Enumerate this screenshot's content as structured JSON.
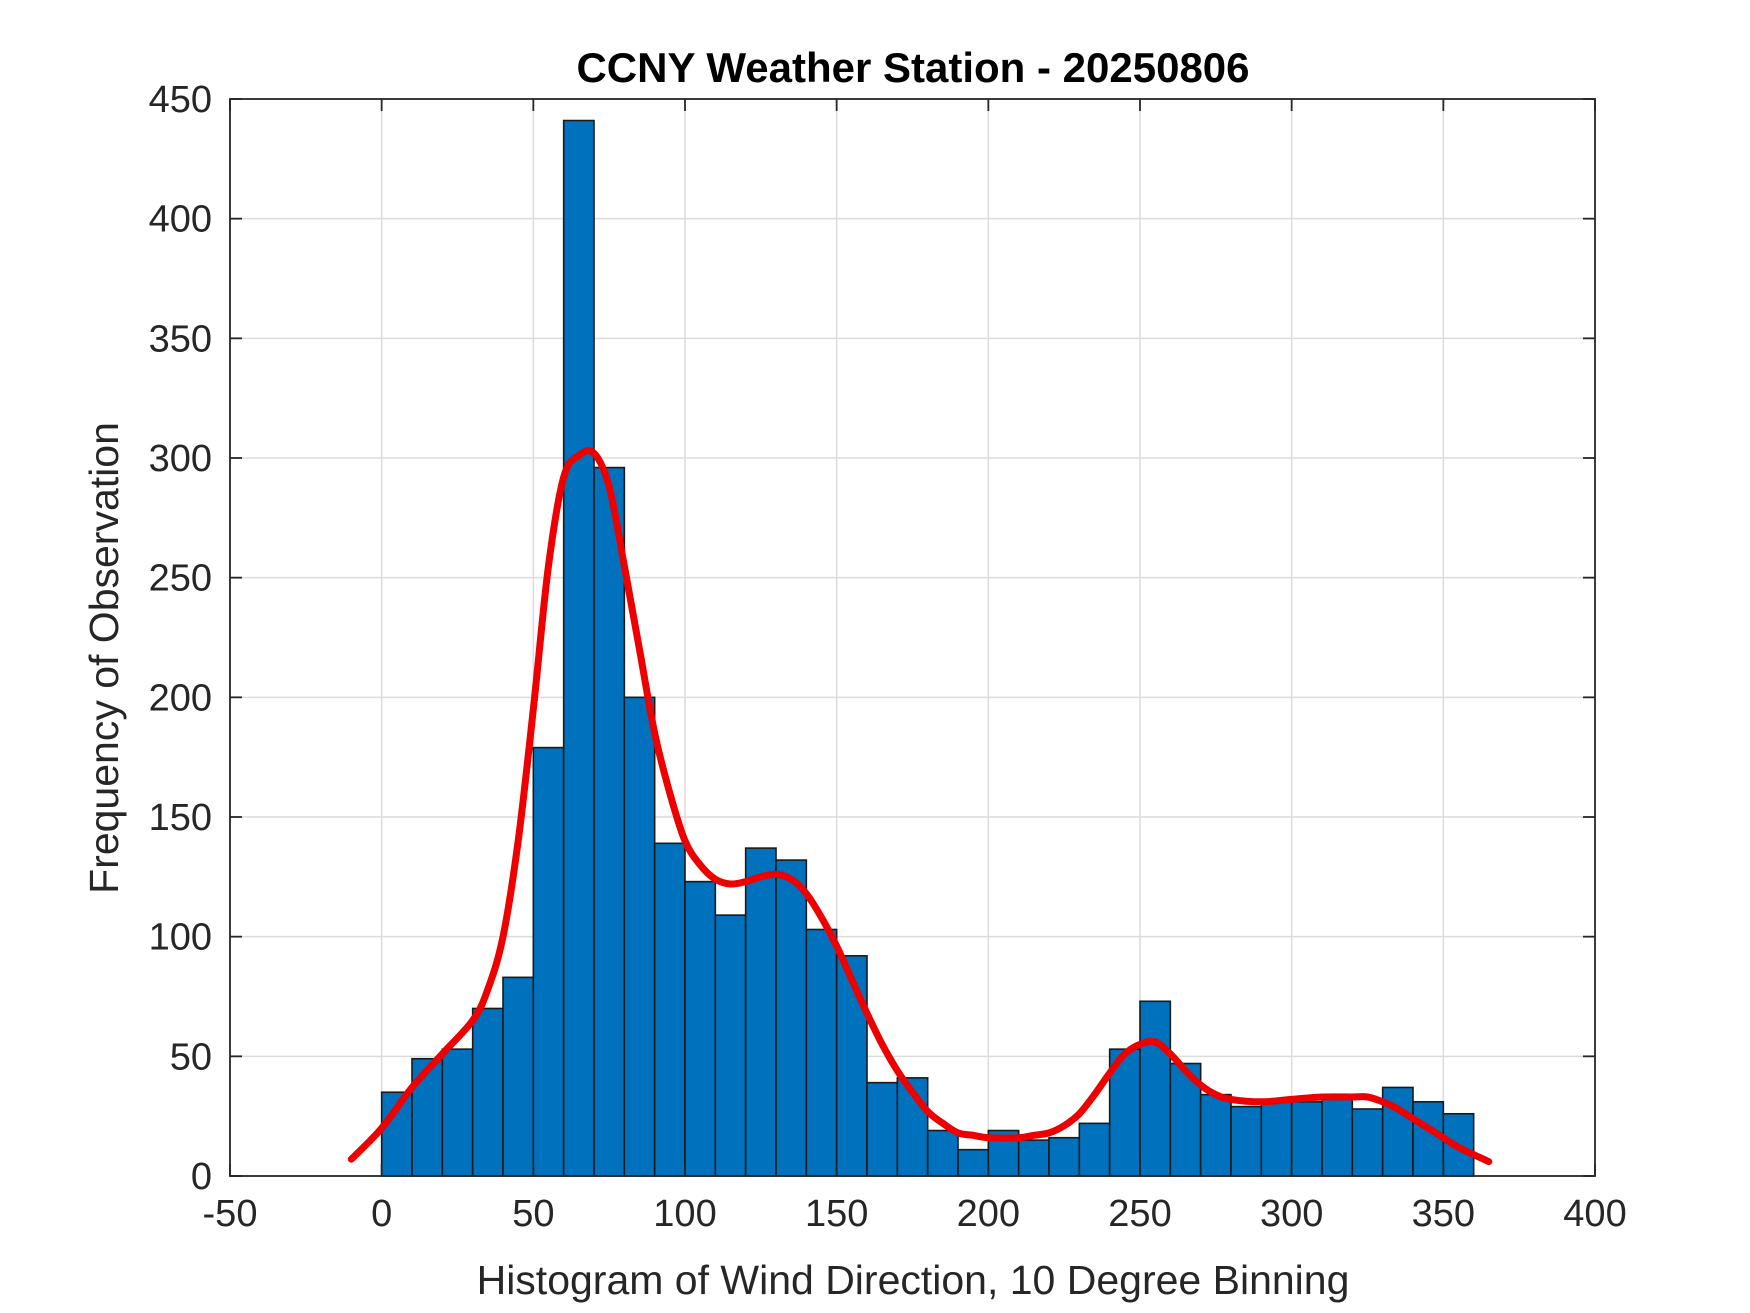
{
  "chart_data": {
    "type": "bar",
    "title": "CCNY Weather Station - 20250806",
    "xlabel": "Histogram of Wind Direction, 10 Degree Binning",
    "ylabel": "Frequency of Observation",
    "xlim": [
      -50,
      400
    ],
    "ylim": [
      0,
      450
    ],
    "xticks": [
      -50,
      0,
      50,
      100,
      150,
      200,
      250,
      300,
      350,
      400
    ],
    "yticks": [
      0,
      50,
      100,
      150,
      200,
      250,
      300,
      350,
      400,
      450
    ],
    "grid": true,
    "bin_width": 10,
    "bins": [
      {
        "start": 0,
        "value": 35
      },
      {
        "start": 10,
        "value": 49
      },
      {
        "start": 20,
        "value": 53
      },
      {
        "start": 30,
        "value": 70
      },
      {
        "start": 40,
        "value": 83
      },
      {
        "start": 50,
        "value": 179
      },
      {
        "start": 60,
        "value": 441
      },
      {
        "start": 70,
        "value": 296
      },
      {
        "start": 80,
        "value": 200
      },
      {
        "start": 90,
        "value": 139
      },
      {
        "start": 100,
        "value": 123
      },
      {
        "start": 110,
        "value": 109
      },
      {
        "start": 120,
        "value": 137
      },
      {
        "start": 130,
        "value": 132
      },
      {
        "start": 140,
        "value": 103
      },
      {
        "start": 150,
        "value": 92
      },
      {
        "start": 160,
        "value": 39
      },
      {
        "start": 170,
        "value": 41
      },
      {
        "start": 180,
        "value": 19
      },
      {
        "start": 190,
        "value": 11
      },
      {
        "start": 200,
        "value": 19
      },
      {
        "start": 210,
        "value": 15
      },
      {
        "start": 220,
        "value": 16
      },
      {
        "start": 230,
        "value": 22
      },
      {
        "start": 240,
        "value": 53
      },
      {
        "start": 250,
        "value": 73
      },
      {
        "start": 260,
        "value": 47
      },
      {
        "start": 270,
        "value": 34
      },
      {
        "start": 280,
        "value": 29
      },
      {
        "start": 290,
        "value": 31
      },
      {
        "start": 300,
        "value": 31
      },
      {
        "start": 310,
        "value": 32
      },
      {
        "start": 320,
        "value": 28
      },
      {
        "start": 330,
        "value": 37
      },
      {
        "start": 340,
        "value": 31
      },
      {
        "start": 350,
        "value": 26
      }
    ],
    "fit_curve": {
      "name": "density fit",
      "points": [
        [
          -10,
          7
        ],
        [
          0,
          20
        ],
        [
          10,
          37
        ],
        [
          20,
          51
        ],
        [
          30,
          65
        ],
        [
          35,
          78
        ],
        [
          40,
          100
        ],
        [
          45,
          140
        ],
        [
          50,
          195
        ],
        [
          55,
          255
        ],
        [
          60,
          292
        ],
        [
          65,
          301
        ],
        [
          70,
          302
        ],
        [
          75,
          288
        ],
        [
          80,
          255
        ],
        [
          85,
          220
        ],
        [
          90,
          185
        ],
        [
          95,
          160
        ],
        [
          100,
          140
        ],
        [
          105,
          130
        ],
        [
          110,
          124
        ],
        [
          115,
          122
        ],
        [
          120,
          123
        ],
        [
          125,
          125
        ],
        [
          130,
          126
        ],
        [
          135,
          124
        ],
        [
          140,
          118
        ],
        [
          145,
          108
        ],
        [
          150,
          96
        ],
        [
          155,
          82
        ],
        [
          160,
          68
        ],
        [
          165,
          55
        ],
        [
          170,
          44
        ],
        [
          175,
          35
        ],
        [
          180,
          27
        ],
        [
          185,
          22
        ],
        [
          190,
          18
        ],
        [
          195,
          17
        ],
        [
          200,
          16
        ],
        [
          210,
          16
        ],
        [
          215,
          17
        ],
        [
          220,
          18
        ],
        [
          225,
          21
        ],
        [
          230,
          26
        ],
        [
          235,
          34
        ],
        [
          240,
          43
        ],
        [
          245,
          51
        ],
        [
          250,
          55
        ],
        [
          255,
          56
        ],
        [
          260,
          51
        ],
        [
          265,
          44
        ],
        [
          270,
          38
        ],
        [
          275,
          34
        ],
        [
          280,
          32
        ],
        [
          290,
          31
        ],
        [
          300,
          32
        ],
        [
          310,
          33
        ],
        [
          320,
          33
        ],
        [
          325,
          33
        ],
        [
          330,
          31
        ],
        [
          335,
          28
        ],
        [
          340,
          24
        ],
        [
          345,
          20
        ],
        [
          350,
          16
        ],
        [
          355,
          12
        ],
        [
          365,
          6
        ]
      ]
    },
    "colors": {
      "bar_fill": "#0072BD",
      "bar_edge": "#1a1a1a",
      "curve": "#EE0000",
      "grid": "#DCDCDC",
      "axis": "#262626",
      "tick_text": "#262626"
    }
  }
}
